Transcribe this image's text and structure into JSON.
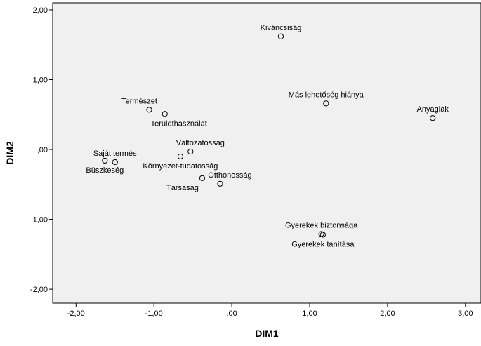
{
  "chart_data": {
    "type": "scatter",
    "title": "",
    "xlabel": "DIM1",
    "ylabel": "DIM2",
    "xlim": [
      -2.3,
      3.2
    ],
    "ylim": [
      -2.2,
      2.1
    ],
    "x_ticks": [
      -2,
      -1,
      0,
      1,
      2,
      3
    ],
    "y_ticks": [
      -2,
      -1,
      0,
      1,
      2
    ],
    "x_tick_labels": [
      "-2,00",
      "-1,00",
      ",00",
      "1,00",
      "2,00",
      "3,00"
    ],
    "y_tick_labels": [
      "-2,00",
      "-1,00",
      ",00",
      "1,00",
      "2,00"
    ],
    "grid": false,
    "legend": "none",
    "marker_color": "#000000",
    "points": [
      {
        "label": "Kiváncsiság",
        "x": 0.63,
        "y": 1.62,
        "label_pos": "above"
      },
      {
        "label": "Más lehetőség hiánya",
        "x": 1.21,
        "y": 0.66,
        "label_pos": "above"
      },
      {
        "label": "Anyagiak",
        "x": 2.58,
        "y": 0.45,
        "label_pos": "above"
      },
      {
        "label": "Természet",
        "x": -1.06,
        "y": 0.57,
        "label_pos": "above-left"
      },
      {
        "label": "Területhasználat",
        "x": -0.86,
        "y": 0.51,
        "label_pos": "below-right"
      },
      {
        "label": "Változatosság",
        "x": -0.53,
        "y": -0.03,
        "label_pos": "above-right"
      },
      {
        "label": "Környezet-tudatosság",
        "x": -0.66,
        "y": -0.1,
        "label_pos": "below"
      },
      {
        "label": "Saját termés",
        "x": -1.5,
        "y": -0.18,
        "label_pos": "above"
      },
      {
        "label": "Büszkeség",
        "x": -1.63,
        "y": -0.16,
        "label_pos": "below"
      },
      {
        "label": "Otthonosság",
        "x": -0.15,
        "y": -0.49,
        "label_pos": "above-right"
      },
      {
        "label": "Társaság",
        "x": -0.38,
        "y": -0.41,
        "label_pos": "below-left"
      },
      {
        "label": "Gyerekek biztonsága",
        "x": 1.15,
        "y": -1.21,
        "label_pos": "above"
      },
      {
        "label": "Gyerekek tanítása",
        "x": 1.17,
        "y": -1.22,
        "label_pos": "below"
      }
    ]
  }
}
